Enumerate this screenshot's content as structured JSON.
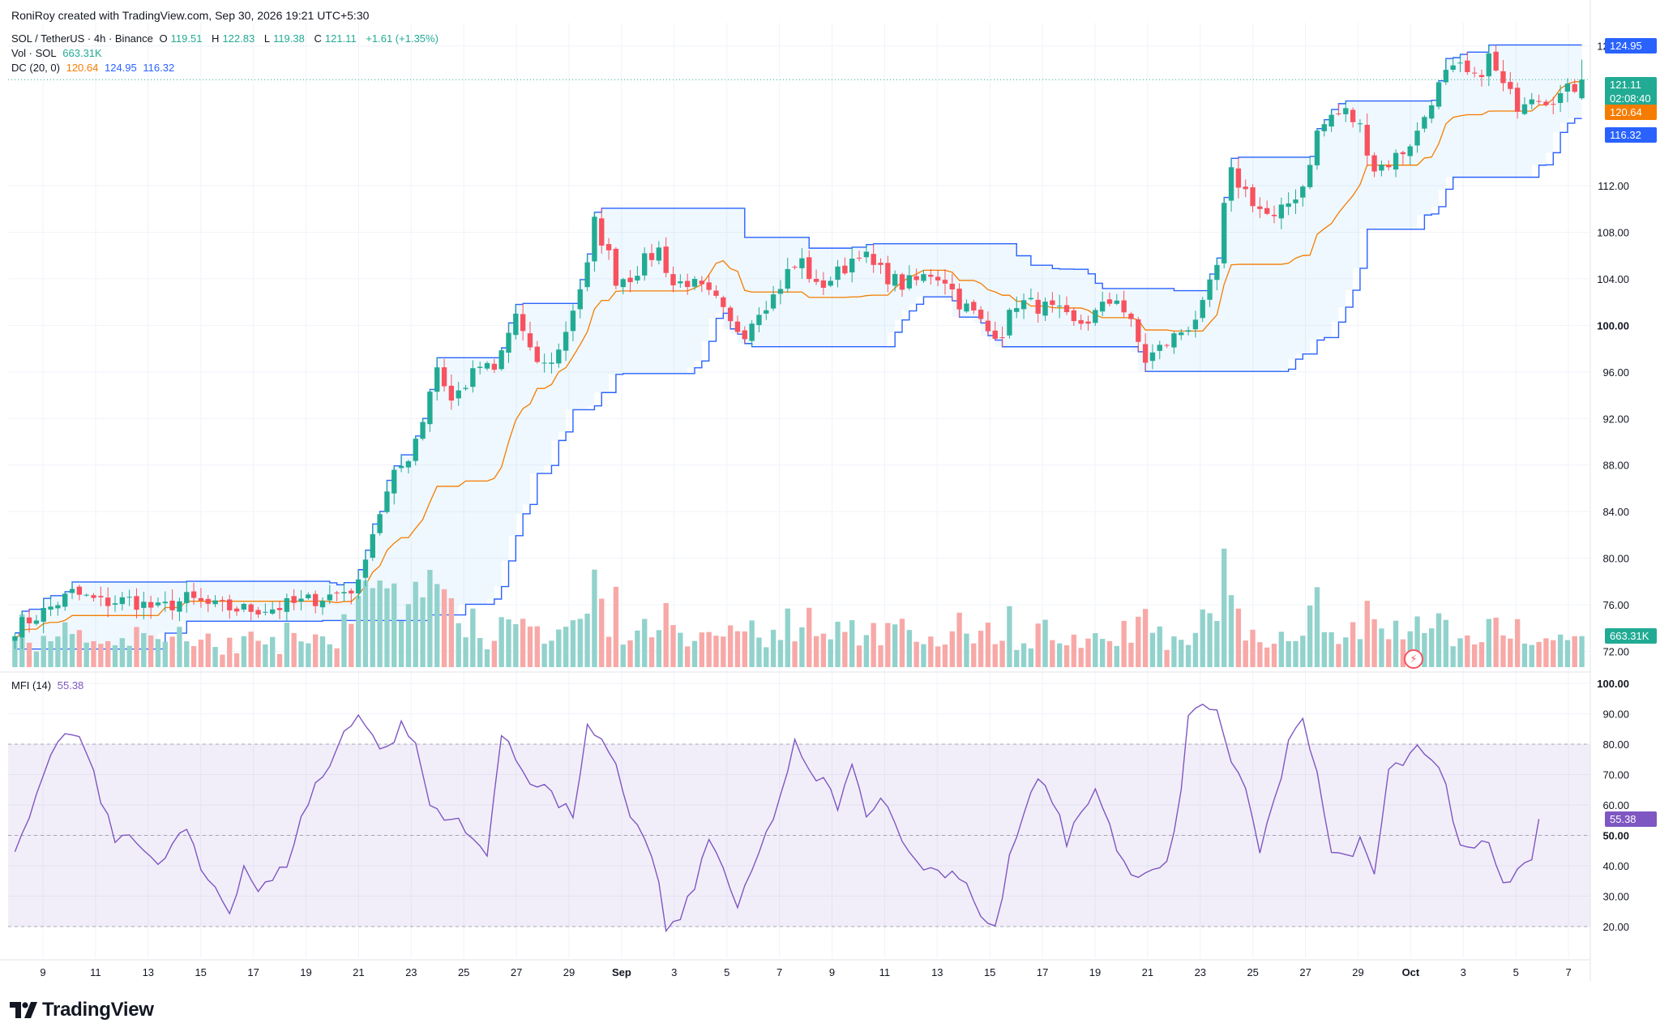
{
  "header": {
    "credit": "RoniRoy created with TradingView.com, Sep 30, 2026 19:21 UTC+5:30",
    "symbol": "SOL / TetherUS · 4h · Binance",
    "open_label": "O",
    "open": "119.51",
    "high_label": "H",
    "high": "122.83",
    "low_label": "L",
    "low": "119.38",
    "close_label": "C",
    "close": "121.11",
    "change": "+1.61 (+1.35%)",
    "vol_label": "Vol · SOL",
    "vol_value": "663.31K",
    "dc_label": "DC (20, 0)",
    "dc_mid": "120.64",
    "dc_upper": "124.95",
    "dc_lower": "116.32",
    "mfi_label": "MFI (14)",
    "mfi_value": "55.38"
  },
  "price_axis": {
    "ticks": [
      "124.00",
      "112.00",
      "108.00",
      "104.00",
      "100.00",
      "96.00",
      "92.00",
      "88.00",
      "84.00",
      "80.00",
      "76.00",
      "72.00"
    ],
    "bold_tick": "100.00"
  },
  "mfi_axis": {
    "ticks": [
      "100.00",
      "90.00",
      "80.00",
      "70.00",
      "60.00",
      "50.00",
      "40.00",
      "30.00",
      "20.00"
    ]
  },
  "time_axis": {
    "ticks": [
      "9",
      "11",
      "13",
      "15",
      "17",
      "19",
      "21",
      "23",
      "25",
      "27",
      "29",
      "Sep",
      "3",
      "5",
      "7",
      "9",
      "11",
      "13",
      "15",
      "17",
      "19",
      "21",
      "23",
      "25",
      "27",
      "29",
      "Oct",
      "3",
      "5",
      "7"
    ]
  },
  "tags": {
    "upper": "124.95",
    "price": "121.11",
    "countdown": "02:08:40",
    "mid": "120.64",
    "lower": "116.32",
    "volume": "663.31K",
    "mfi": "55.38"
  },
  "colors": {
    "up": "#22ab94",
    "down": "#f7525f",
    "dc_band": "#2962ff",
    "dc_mid": "#f57c00",
    "mfi_line": "#7e57c2",
    "vol_up": "#92d2cc",
    "vol_down": "#f7a9a7"
  },
  "chart_data": {
    "type": "candlestick",
    "symbol": "SOL / TetherUS",
    "interval": "4h",
    "price_range": [
      70.5,
      126
    ],
    "close_path": [
      [
        0,
        74.0
      ],
      [
        4,
        75.4
      ],
      [
        8,
        77.0
      ],
      [
        12,
        76.2
      ],
      [
        16,
        76.4
      ],
      [
        20,
        75.6
      ],
      [
        24,
        76.5
      ],
      [
        28,
        75.8
      ],
      [
        32,
        75.6
      ],
      [
        36,
        75.7
      ],
      [
        40,
        76.2
      ],
      [
        44,
        76.8
      ],
      [
        48,
        77.6
      ],
      [
        49,
        80.5
      ],
      [
        51,
        84.0
      ],
      [
        53,
        87.0
      ],
      [
        55,
        88.8
      ],
      [
        57,
        92.0
      ],
      [
        58,
        94.5
      ],
      [
        59,
        96.5
      ],
      [
        61,
        93.5
      ],
      [
        63,
        95.0
      ],
      [
        65,
        96.5
      ],
      [
        67,
        96.0
      ],
      [
        70,
        101.0
      ],
      [
        72,
        97.5
      ],
      [
        74,
        96.5
      ],
      [
        76,
        97.8
      ],
      [
        78,
        101.5
      ],
      [
        80,
        105.0
      ],
      [
        81,
        108.8
      ],
      [
        83,
        106.0
      ],
      [
        84,
        104.0
      ],
      [
        86,
        104.2
      ],
      [
        88,
        105.5
      ],
      [
        90,
        106.5
      ],
      [
        92,
        103.5
      ],
      [
        94,
        103.8
      ],
      [
        96,
        103.0
      ],
      [
        98,
        102.0
      ],
      [
        100,
        100.0
      ],
      [
        102,
        99.5
      ],
      [
        104,
        101.5
      ],
      [
        106,
        102.5
      ],
      [
        108,
        104.5
      ],
      [
        110,
        105.5
      ],
      [
        112,
        103.2
      ],
      [
        114,
        104.0
      ],
      [
        116,
        105.0
      ],
      [
        118,
        106.5
      ],
      [
        120,
        105.0
      ],
      [
        122,
        104.2
      ],
      [
        124,
        103.5
      ],
      [
        126,
        103.8
      ],
      [
        128,
        104.5
      ],
      [
        130,
        104.0
      ],
      [
        132,
        102.0
      ],
      [
        134,
        101.0
      ],
      [
        136,
        99.5
      ],
      [
        138,
        99.5
      ],
      [
        140,
        102.0
      ],
      [
        142,
        101.8
      ],
      [
        144,
        101.5
      ],
      [
        146,
        101.0
      ],
      [
        148,
        100.0
      ],
      [
        150,
        100.5
      ],
      [
        152,
        101.5
      ],
      [
        154,
        102.5
      ],
      [
        156,
        100.0
      ],
      [
        158,
        97.0
      ],
      [
        160,
        98.0
      ],
      [
        162,
        99.0
      ],
      [
        164,
        100.0
      ],
      [
        166,
        101.5
      ],
      [
        168,
        105.0
      ],
      [
        169,
        110.0
      ],
      [
        170,
        113.0
      ],
      [
        172,
        111.5
      ],
      [
        174,
        110.0
      ],
      [
        176,
        109.0
      ],
      [
        178,
        110.5
      ],
      [
        180,
        112.0
      ],
      [
        182,
        116.5
      ],
      [
        184,
        118.0
      ],
      [
        186,
        118.3
      ],
      [
        188,
        117.0
      ],
      [
        190,
        113.5
      ],
      [
        192,
        114.0
      ],
      [
        194,
        115.0
      ],
      [
        196,
        116.5
      ],
      [
        198,
        119.5
      ],
      [
        200,
        121.5
      ],
      [
        202,
        122.0
      ],
      [
        204,
        121.0
      ],
      [
        206,
        123.0
      ],
      [
        208,
        120.5
      ],
      [
        210,
        119.0
      ],
      [
        212,
        120.0
      ],
      [
        214,
        119.5
      ],
      [
        216,
        119.8
      ],
      [
        218,
        120.5
      ],
      [
        219,
        121.11
      ]
    ],
    "donchian": {
      "period": 20,
      "upper": 124.95,
      "middle": 120.64,
      "lower": 116.32
    },
    "last": {
      "open": 119.51,
      "high": 122.83,
      "low": 119.38,
      "close": 121.11,
      "change": 1.61,
      "change_pct": 1.35
    },
    "volume_last": "663.31K",
    "mfi": {
      "period": 14,
      "last": 55.38,
      "levels": [
        20,
        50,
        80
      ],
      "path": [
        [
          0,
          43
        ],
        [
          4,
          68
        ],
        [
          6,
          82
        ],
        [
          8,
          83
        ],
        [
          10,
          78
        ],
        [
          12,
          62
        ],
        [
          14,
          48
        ],
        [
          16,
          52
        ],
        [
          18,
          45
        ],
        [
          20,
          39
        ],
        [
          22,
          47
        ],
        [
          24,
          52
        ],
        [
          26,
          38
        ],
        [
          28,
          33
        ],
        [
          30,
          25
        ],
        [
          32,
          40
        ],
        [
          34,
          32
        ],
        [
          36,
          35
        ],
        [
          38,
          41
        ],
        [
          40,
          55
        ],
        [
          42,
          67
        ],
        [
          44,
          72
        ],
        [
          46,
          85
        ],
        [
          48,
          90
        ],
        [
          50,
          82
        ],
        [
          52,
          78
        ],
        [
          54,
          86
        ],
        [
          56,
          80
        ],
        [
          58,
          60
        ],
        [
          60,
          57
        ],
        [
          62,
          54
        ],
        [
          64,
          48
        ],
        [
          66,
          45
        ],
        [
          68,
          83
        ],
        [
          70,
          75
        ],
        [
          72,
          68
        ],
        [
          74,
          67
        ],
        [
          76,
          60
        ],
        [
          78,
          57
        ],
        [
          80,
          85
        ],
        [
          82,
          80
        ],
        [
          84,
          72
        ],
        [
          86,
          57
        ],
        [
          88,
          50
        ],
        [
          90,
          34
        ],
        [
          91,
          19
        ],
        [
          93,
          22
        ],
        [
          95,
          34
        ],
        [
          97,
          48
        ],
        [
          99,
          40
        ],
        [
          101,
          25
        ],
        [
          103,
          38
        ],
        [
          105,
          50
        ],
        [
          107,
          63
        ],
        [
          109,
          80
        ],
        [
          111,
          70
        ],
        [
          113,
          68
        ],
        [
          115,
          60
        ],
        [
          117,
          72
        ],
        [
          119,
          58
        ],
        [
          121,
          62
        ],
        [
          123,
          56
        ],
        [
          125,
          43
        ],
        [
          127,
          40
        ],
        [
          129,
          38
        ],
        [
          131,
          38
        ],
        [
          133,
          35
        ],
        [
          135,
          23
        ],
        [
          137,
          19
        ],
        [
          139,
          42
        ],
        [
          141,
          57
        ],
        [
          143,
          68
        ],
        [
          145,
          62
        ],
        [
          147,
          48
        ],
        [
          149,
          58
        ],
        [
          151,
          65
        ],
        [
          153,
          53
        ],
        [
          155,
          40
        ],
        [
          157,
          35
        ],
        [
          159,
          38
        ],
        [
          161,
          40
        ],
        [
          163,
          65
        ],
        [
          164,
          88
        ],
        [
          166,
          94
        ],
        [
          168,
          90
        ],
        [
          170,
          75
        ],
        [
          172,
          65
        ],
        [
          174,
          45
        ],
        [
          176,
          60
        ],
        [
          178,
          80
        ],
        [
          180,
          87
        ],
        [
          182,
          72
        ],
        [
          184,
          45
        ],
        [
          186,
          42
        ],
        [
          188,
          48
        ],
        [
          190,
          39
        ],
        [
          192,
          72
        ],
        [
          194,
          75
        ],
        [
          196,
          80
        ],
        [
          198,
          75
        ],
        [
          200,
          68
        ],
        [
          202,
          45
        ],
        [
          204,
          45
        ],
        [
          206,
          48
        ],
        [
          208,
          35
        ],
        [
          210,
          38
        ],
        [
          212,
          40
        ],
        [
          213,
          55.38
        ]
      ]
    },
    "xlabels": [
      "9",
      "11",
      "13",
      "15",
      "17",
      "19",
      "21",
      "23",
      "25",
      "27",
      "29",
      "Sep",
      "3",
      "5",
      "7",
      "9",
      "11",
      "13",
      "15",
      "17",
      "19",
      "21",
      "23",
      "25",
      "27",
      "29",
      "Oct",
      "3",
      "5",
      "7"
    ],
    "xlabel": "",
    "ylabel": ""
  }
}
